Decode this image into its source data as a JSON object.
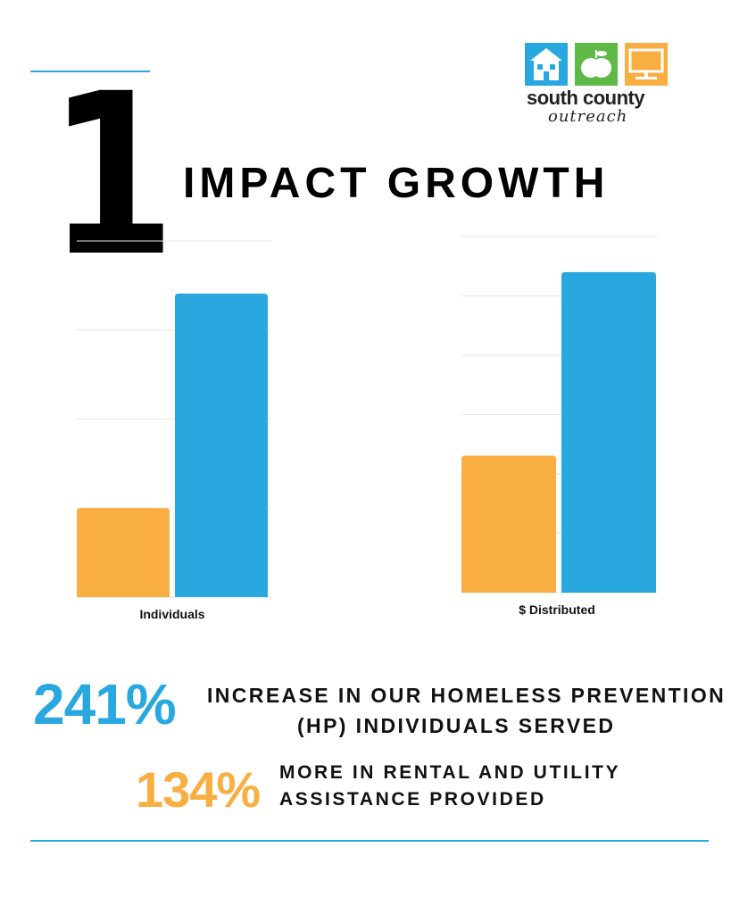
{
  "header": {
    "number": "1",
    "headline": "IMPACT GROWTH"
  },
  "logo": {
    "name": "south county",
    "sub": "outreach",
    "tile_colors": [
      "#29a8e0",
      "#5fb946",
      "#f9ae41"
    ],
    "icons": [
      "house-icon",
      "apple-icon",
      "computer-icon"
    ]
  },
  "colors": {
    "accent_blue": "#29a8e0",
    "accent_orange": "#f9ae41",
    "gridline": "#e6e6e6"
  },
  "chart_data": [
    {
      "type": "bar",
      "categories": [
        "Individuals"
      ],
      "series": [
        {
          "color": "#f9ae41",
          "values": [
            100
          ]
        },
        {
          "color": "#29a8e0",
          "values": [
            341
          ]
        }
      ],
      "ylim": [
        0,
        400
      ],
      "grid": true,
      "legend": "none"
    },
    {
      "type": "bar",
      "categories": [
        "$ Distributed"
      ],
      "series": [
        {
          "color": "#f9ae41",
          "values": [
            100
          ]
        },
        {
          "color": "#29a8e0",
          "values": [
            234
          ]
        }
      ],
      "ylim": [
        0,
        260
      ],
      "grid": true,
      "legend": "none"
    }
  ],
  "stats": [
    {
      "percent": "241%",
      "line1": "INCREASE IN OUR HOMELESS PREVENTION",
      "line2": "(HP) INDIVIDUALS SERVED"
    },
    {
      "percent": "134%",
      "line1": "MORE IN RENTAL AND UTILITY",
      "line2": "ASSISTANCE PROVIDED"
    }
  ]
}
